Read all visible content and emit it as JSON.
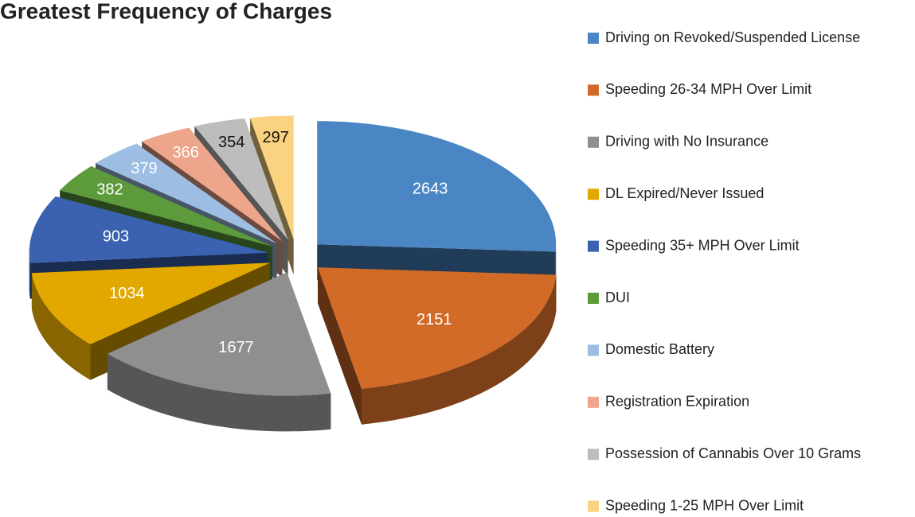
{
  "chart_data": {
    "type": "pie3d",
    "title": "Greatest Frequency of Charges",
    "categories": [
      "Driving on Revoked/Suspended License",
      "Speeding 26-34 MPH Over Limit",
      "Driving with No Insurance",
      "DL Expired/Never Issued",
      "Speeding 35+ MPH Over Limit",
      "DUI",
      "Domestic Battery",
      "Registration Expiration",
      "Possession of Cannabis Over 10 Grams",
      "Speeding 1-25 MPH Over Limit"
    ],
    "values": [
      2643,
      2151,
      1677,
      1034,
      903,
      382,
      379,
      366,
      354,
      297
    ],
    "colors": [
      "#4a86c4",
      "#d26b28",
      "#8f8f8f",
      "#e2a800",
      "#3a62b0",
      "#5c9a3c",
      "#9dbde3",
      "#eda58c",
      "#bdbdbd",
      "#fbd27f"
    ],
    "legend": "right"
  }
}
